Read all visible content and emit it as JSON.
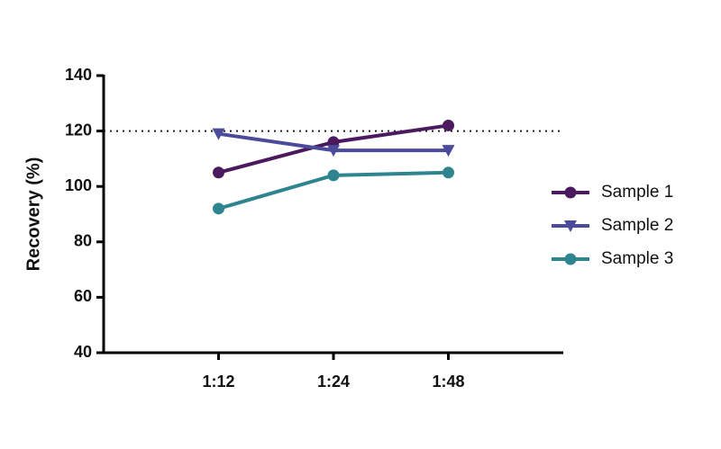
{
  "chart_data": {
    "type": "line",
    "y_label": "Recovery (%)",
    "categories": [
      "1:12",
      "1:24",
      "1:48"
    ],
    "series": [
      {
        "name": "Sample 1",
        "color": "#4b1a5e",
        "marker": "circle",
        "values": [
          105,
          116,
          122
        ]
      },
      {
        "name": "Sample 2",
        "color": "#4c4a9a",
        "marker": "triangle-down",
        "values": [
          119,
          113,
          113
        ]
      },
      {
        "name": "Sample 3",
        "color": "#2e8590",
        "marker": "circle",
        "values": [
          92,
          104,
          105
        ]
      }
    ],
    "ylim": [
      40,
      140
    ],
    "yticks": [
      40,
      60,
      80,
      100,
      120,
      140
    ],
    "reference_line": 120,
    "legend": "right"
  }
}
